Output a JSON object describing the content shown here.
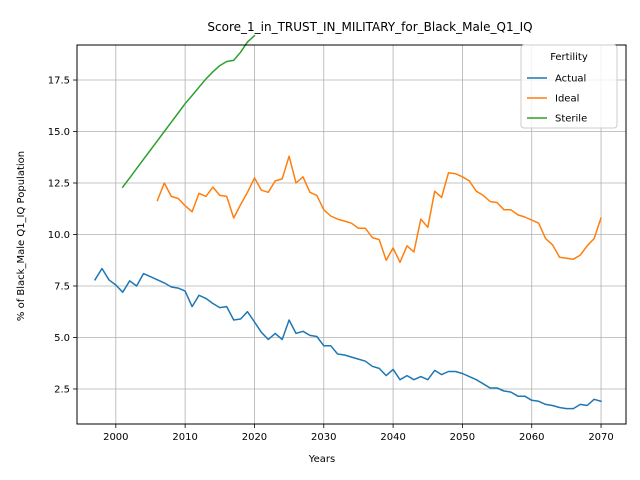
{
  "chart_data": {
    "type": "line",
    "title": "Score_1_in_TRUST_IN_MILITARY_for_Black_Male_Q1_IQ",
    "xlabel": "Years",
    "ylabel": "% of Black_Male Q1_IQ Population",
    "xlim": [
      1994.4,
      2073.6
    ],
    "ylim": [
      0.8,
      19.2
    ],
    "xticks": [
      2000,
      2010,
      2020,
      2030,
      2040,
      2050,
      2060,
      2070
    ],
    "yticks": [
      2.5,
      5.0,
      7.5,
      10.0,
      12.5,
      15.0,
      17.5
    ],
    "ytick_labels": [
      "2.5",
      "5.0",
      "7.5",
      "10.0",
      "12.5",
      "15.0",
      "17.5"
    ],
    "grid": true,
    "legend": {
      "title": "Fertility",
      "position": "top-right"
    },
    "series": [
      {
        "name": "Actual",
        "color": "#1f77b4",
        "x": [
          1997,
          1998,
          1999,
          2000,
          2001,
          2002,
          2003,
          2004,
          2005,
          2006,
          2007,
          2008,
          2009,
          2010,
          2011,
          2012,
          2013,
          2014,
          2015,
          2016,
          2017,
          2018,
          2019,
          2020,
          2021,
          2022,
          2023,
          2024,
          2025,
          2026,
          2027,
          2028,
          2029,
          2030,
          2031,
          2032,
          2033,
          2034,
          2035,
          2036,
          2037,
          2038,
          2039,
          2040,
          2041,
          2042,
          2043,
          2044,
          2045,
          2046,
          2047,
          2048,
          2049,
          2050,
          2051,
          2052,
          2053,
          2054,
          2055,
          2056,
          2057,
          2058,
          2059,
          2060,
          2061,
          2062,
          2063,
          2064,
          2065,
          2066,
          2067,
          2068,
          2069,
          2070
        ],
        "y": [
          7.8,
          8.35,
          7.8,
          7.55,
          7.2,
          7.75,
          7.5,
          8.1,
          7.95,
          7.8,
          7.65,
          7.45,
          7.4,
          7.25,
          6.5,
          7.05,
          6.9,
          6.65,
          6.45,
          6.5,
          5.85,
          5.9,
          6.25,
          5.75,
          5.25,
          4.9,
          5.2,
          4.9,
          5.85,
          5.2,
          5.3,
          5.1,
          5.05,
          4.6,
          4.6,
          4.2,
          4.15,
          4.05,
          3.95,
          3.85,
          3.6,
          3.5,
          3.15,
          3.45,
          2.95,
          3.15,
          2.95,
          3.1,
          2.95,
          3.4,
          3.2,
          3.35,
          3.35,
          3.25,
          3.1,
          2.95,
          2.75,
          2.55,
          2.55,
          2.4,
          2.35,
          2.15,
          2.15,
          1.95,
          1.9,
          1.75,
          1.7,
          1.6,
          1.55,
          1.55,
          1.75,
          1.7,
          2.0,
          1.9
        ]
      },
      {
        "name": "Ideal",
        "color": "#ff7f0e",
        "x": [
          2006,
          2007,
          2008,
          2009,
          2010,
          2011,
          2012,
          2013,
          2014,
          2015,
          2016,
          2017,
          2018,
          2019,
          2020,
          2021,
          2022,
          2023,
          2024,
          2025,
          2026,
          2027,
          2028,
          2029,
          2030,
          2031,
          2032,
          2033,
          2034,
          2035,
          2036,
          2037,
          2038,
          2039,
          2040,
          2041,
          2042,
          2043,
          2044,
          2045,
          2046,
          2047,
          2048,
          2049,
          2050,
          2051,
          2052,
          2053,
          2054,
          2055,
          2056,
          2057,
          2058,
          2059,
          2060,
          2061,
          2062,
          2063,
          2064,
          2065,
          2066,
          2067,
          2068,
          2069,
          2070
        ],
        "y": [
          11.65,
          12.5,
          11.85,
          11.75,
          11.4,
          11.1,
          12.0,
          11.85,
          12.3,
          11.9,
          11.85,
          10.8,
          11.45,
          12.05,
          12.75,
          12.15,
          12.05,
          12.6,
          12.7,
          13.8,
          12.5,
          12.8,
          12.05,
          11.9,
          11.2,
          10.9,
          10.75,
          10.65,
          10.55,
          10.3,
          10.3,
          9.85,
          9.75,
          8.75,
          9.35,
          8.65,
          9.45,
          9.15,
          10.75,
          10.35,
          12.1,
          11.8,
          13.0,
          12.95,
          12.8,
          12.6,
          12.1,
          11.9,
          11.6,
          11.55,
          11.2,
          11.2,
          10.95,
          10.85,
          10.7,
          10.55,
          9.8,
          9.5,
          8.9,
          8.85,
          8.8,
          9.0,
          9.45,
          9.8,
          10.8
        ]
      },
      {
        "name": "Sterile",
        "color": "#2ca02c",
        "x": [
          2001,
          2002,
          2003,
          2004,
          2005,
          2006,
          2007,
          2008,
          2009,
          2010,
          2011,
          2012,
          2013,
          2014,
          2015,
          2016,
          2017,
          2018,
          2019,
          2020
        ],
        "y": [
          12.3,
          12.75,
          13.2,
          13.65,
          14.1,
          14.55,
          15.0,
          15.45,
          15.9,
          16.35,
          16.75,
          17.15,
          17.55,
          17.9,
          18.2,
          18.4,
          18.45,
          18.85,
          19.35,
          19.65
        ]
      }
    ]
  }
}
